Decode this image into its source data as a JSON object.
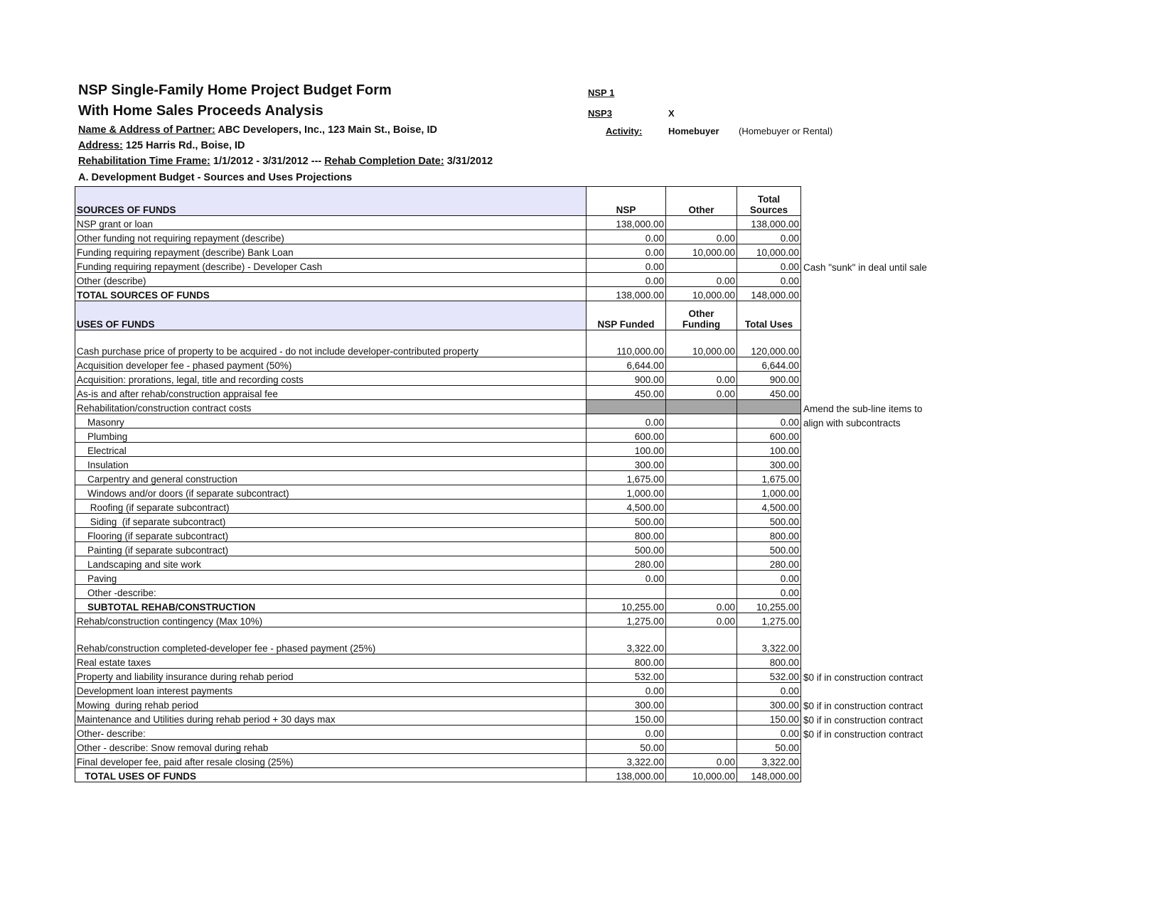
{
  "header": {
    "title_line1": "NSP Single-Family Home Project Budget Form",
    "title_line2": "With Home Sales Proceeds Analysis",
    "nsp1_label": "NSP 1",
    "nsp3_label": "NSP3",
    "nsp3_mark": "X",
    "partner_label": "Name & Address of Partner:",
    "partner_value": "ABC Developers, Inc., 123 Main St., Boise, ID",
    "activity_label": "Activity:",
    "activity_value": "Homebuyer",
    "activity_hint": "(Homebuyer or Rental)",
    "address_label": "Address:",
    "address_value": "125 Harris Rd., Boise, ID",
    "timeframe_label": "Rehabilitation Time Frame:",
    "timeframe_value": "1/1/2012 - 3/31/2012 ---",
    "completion_label": "Rehab Completion Date:",
    "completion_value": "3/31/2012",
    "section_title": "A.  Development Budget - Sources and Uses Projections"
  },
  "sources": {
    "header": {
      "label": "SOURCES OF FUNDS",
      "col1": "NSP",
      "col2": "Other",
      "col3_line1": "Total",
      "col3_line2": "Sources"
    },
    "rows": [
      {
        "label": "NSP grant or loan",
        "nsp": "138,000.00",
        "other": "",
        "total": "138,000.00",
        "note": ""
      },
      {
        "label": "Other funding not requiring repayment (describe)",
        "nsp": "0.00",
        "other": "0.00",
        "total": "0.00",
        "note": ""
      },
      {
        "label": "Funding requiring repayment (describe) Bank Loan",
        "nsp": "0.00",
        "other": "10,000.00",
        "total": "10,000.00",
        "note": ""
      },
      {
        "label": "Funding requiring repayment (describe) - Developer Cash",
        "nsp": "0.00",
        "other": "",
        "total": "0.00",
        "note": "Cash \"sunk\" in deal until sale"
      },
      {
        "label": "Other (describe)",
        "nsp": "0.00",
        "other": "0.00",
        "total": "0.00",
        "note": ""
      },
      {
        "label": "TOTAL SOURCES OF FUNDS",
        "nsp": "138,000.00",
        "other": "10,000.00",
        "total": "148,000.00",
        "note": ""
      }
    ]
  },
  "uses": {
    "header": {
      "label": "USES OF FUNDS",
      "col1": "NSP Funded",
      "col2_line1": "Other",
      "col2_line2": "Funding",
      "col3": "Total Uses"
    },
    "rows": [
      {
        "label": "Cash purchase price of property to be acquired - do not include developer-contributed property",
        "nsp": "110,000.00",
        "other": "10,000.00",
        "total": "120,000.00",
        "note": "",
        "tall": true
      },
      {
        "label": "Acquisition developer fee - phased payment (50%)",
        "nsp": "6,644.00",
        "other": "",
        "total": "6,644.00",
        "note": ""
      },
      {
        "label": "Acquisition: prorations, legal, title and recording costs",
        "nsp": "900.00",
        "other": "0.00",
        "total": "900.00",
        "note": ""
      },
      {
        "label": "As-is and after rehab/construction appraisal fee",
        "nsp": "450.00",
        "other": "0.00",
        "total": "450.00",
        "note": ""
      },
      {
        "label": "Rehabilitation/construction contract costs",
        "nsp": "",
        "other": "",
        "total": "",
        "note": "Amend the sub-line items to",
        "gray": true
      },
      {
        "label": "    Masonry",
        "nsp": "0.00",
        "other": "",
        "total": "0.00",
        "note": "align with subcontracts"
      },
      {
        "label": "    Plumbing",
        "nsp": "600.00",
        "other": "",
        "total": "600.00",
        "note": ""
      },
      {
        "label": "    Electrical",
        "nsp": "100.00",
        "other": "",
        "total": "100.00",
        "note": ""
      },
      {
        "label": "    Insulation",
        "nsp": "300.00",
        "other": "",
        "total": "300.00",
        "note": ""
      },
      {
        "label": "    Carpentry and general construction",
        "nsp": "1,675.00",
        "other": "",
        "total": "1,675.00",
        "note": ""
      },
      {
        "label": "    Windows and/or doors (if separate subcontract)",
        "nsp": "1,000.00",
        "other": "",
        "total": "1,000.00",
        "note": ""
      },
      {
        "label": "     Roofing (if separate subcontract)",
        "nsp": "4,500.00",
        "other": "",
        "total": "4,500.00",
        "note": ""
      },
      {
        "label": "     Siding  (if separate subcontract)",
        "nsp": "500.00",
        "other": "",
        "total": "500.00",
        "note": ""
      },
      {
        "label": "    Flooring (if separate subcontract)",
        "nsp": "800.00",
        "other": "",
        "total": "800.00",
        "note": ""
      },
      {
        "label": "    Painting (if separate subcontract)",
        "nsp": "500.00",
        "other": "",
        "total": "500.00",
        "note": ""
      },
      {
        "label": "    Landscaping and site work",
        "nsp": "280.00",
        "other": "",
        "total": "280.00",
        "note": ""
      },
      {
        "label": "    Paving",
        "nsp": "0.00",
        "other": "",
        "total": "0.00",
        "note": ""
      },
      {
        "label": "    Other -describe:",
        "nsp": "",
        "other": "",
        "total": "0.00",
        "note": ""
      },
      {
        "label": "    SUBTOTAL REHAB/CONSTRUCTION",
        "nsp": "10,255.00",
        "other": "0.00",
        "total": "10,255.00",
        "note": ""
      },
      {
        "label": "Rehab/construction contingency (Max 10%)",
        "nsp": "1,275.00",
        "other": "0.00",
        "total": "1,275.00",
        "note": ""
      },
      {
        "label": "Rehab/construction completed-developer fee - phased payment (25%)",
        "nsp": "3,322.00",
        "other": "",
        "total": "3,322.00",
        "note": "",
        "tall": true
      },
      {
        "label": "Real estate taxes",
        "nsp": "800.00",
        "other": "",
        "total": "800.00",
        "note": ""
      },
      {
        "label": "Property and liability insurance during rehab period",
        "nsp": "532.00",
        "other": "",
        "total": "532.00",
        "note": "$0 if in construction contract"
      },
      {
        "label": "Development loan interest payments",
        "nsp": "0.00",
        "other": "",
        "total": "0.00",
        "note": ""
      },
      {
        "label": "Mowing  during rehab period",
        "nsp": "300.00",
        "other": "",
        "total": "300.00",
        "note": "$0 if in construction contract"
      },
      {
        "label": "Maintenance and Utilities during rehab period + 30 days max",
        "nsp": "150.00",
        "other": "",
        "total": "150.00",
        "note": "$0 if in construction contract"
      },
      {
        "label": "Other- describe:",
        "nsp": "0.00",
        "other": "",
        "total": "0.00",
        "note": "$0 if in construction contract"
      },
      {
        "label": "Other - describe: Snow removal during rehab",
        "nsp": "50.00",
        "other": "",
        "total": "50.00",
        "note": ""
      },
      {
        "label": "Final developer fee, paid after resale closing (25%)",
        "nsp": "3,322.00",
        "other": "0.00",
        "total": "3,322.00",
        "note": ""
      },
      {
        "label": "   TOTAL USES OF FUNDS",
        "nsp": "138,000.00",
        "other": "10,000.00",
        "total": "148,000.00",
        "note": "",
        "bold": true
      }
    ]
  },
  "colors": {
    "header_fill": "#e6e6fa",
    "rehab_row_fill": "#a6a6a6"
  }
}
